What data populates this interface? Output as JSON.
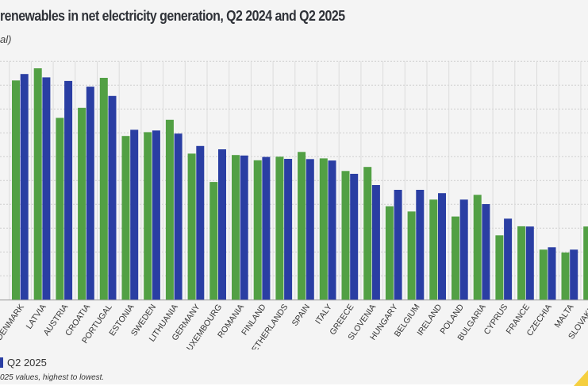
{
  "title": "renewables in net electricity generation, Q2 2024 and Q2 2025",
  "subtitle": "al)",
  "legend": {
    "q2_2025": "Q2 2025"
  },
  "note": "025 values, highest to lowest.",
  "colors": {
    "q2_2024": "#52a044",
    "q2_2025": "#2a3ea3",
    "grid": "#cfcfcf",
    "background": "#f4f4f4",
    "accent": "#f5cf3f"
  },
  "chart_data": {
    "type": "bar",
    "grid": true,
    "ylim": [
      0,
      100
    ],
    "categories": [
      "DENMARK",
      "LATVIA",
      "AUSTRIA",
      "CROATIA",
      "PORTUGAL",
      "ESTONIA",
      "SWEDEN",
      "LITHUANIA",
      "GERMANY",
      "LUXEMBOURG",
      "ROMANIA",
      "FINLAND",
      "NETHERLANDS",
      "SPAIN",
      "ITALY",
      "GREECE",
      "SLOVENIA",
      "HUNGARY",
      "BELGIUM",
      "IRELAND",
      "POLAND",
      "BULGARIA",
      "CYPRUS",
      "FRANCE",
      "CZECHIA",
      "MALTA",
      "SLOVAKIA"
    ],
    "series": [
      {
        "key": "q2_2024",
        "values": [
          92.0,
          97.1,
          76.3,
          80.5,
          93.1,
          68.7,
          70.3,
          75.5,
          61.3,
          49.4,
          60.7,
          58.5,
          60.0,
          62.0,
          59.3,
          54.0,
          55.7,
          39.2,
          37.0,
          42.0,
          34.9,
          44.0,
          27.0,
          30.8,
          21.0,
          19.8,
          30.7
        ]
      },
      {
        "name": "Q2 2025",
        "key": "q2_2025",
        "values": [
          94.7,
          93.3,
          91.8,
          89.4,
          85.5,
          71.3,
          71.0,
          69.7,
          64.5,
          63.1,
          60.5,
          59.9,
          59.1,
          59.0,
          58.4,
          52.8,
          48.1,
          46.1,
          46.1,
          44.7,
          42.0,
          40.1,
          34.0,
          30.7,
          22.0,
          21.0,
          null
        ]
      }
    ]
  }
}
